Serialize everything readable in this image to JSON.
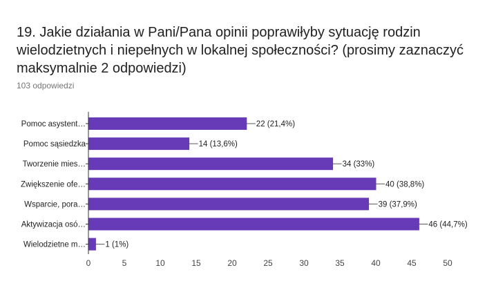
{
  "question": {
    "title": "19. Jakie działania w Pani/Pana opinii poprawiłyby sytuację rodzin wielodzietnych i niepełnych w lokalnej społeczności? (prosimy zaznaczyć maksymalnie 2 odpowiedzi)",
    "responses": "103 odpowiedzi"
  },
  "colors": {
    "bar": "#673ab7",
    "axis": "#333333",
    "grid": "#e0e0e0"
  },
  "chart_data": {
    "type": "bar",
    "orientation": "horizontal",
    "title": "19. Jakie działania w Pani/Pana opinii poprawiłyby sytuację rodzin wielodzietnych i niepełnych w lokalnej społeczności? (prosimy zaznaczyć maksymalnie 2 odpowiedzi)",
    "categories": [
      "Pomoc asystent…",
      "Pomoc sąsiedzka",
      "Tworzenie mies…",
      "Zwiększenie ofe…",
      "Wsparcie, pora…",
      "Aktywizacja osó…",
      "Wielodzietne m…"
    ],
    "values": [
      22,
      14,
      34,
      40,
      39,
      46,
      1
    ],
    "value_labels": [
      "22 (21,4%)",
      "14 (13,6%)",
      "34 (33%)",
      "40 (38,8%)",
      "39 (37,9%)",
      "46 (44,7%)",
      "1 (1%)"
    ],
    "xlim": [
      0,
      50
    ],
    "xticks": [
      0,
      5,
      10,
      15,
      20,
      25,
      30,
      35,
      40,
      45,
      50
    ],
    "xlabel": "",
    "ylabel": ""
  }
}
